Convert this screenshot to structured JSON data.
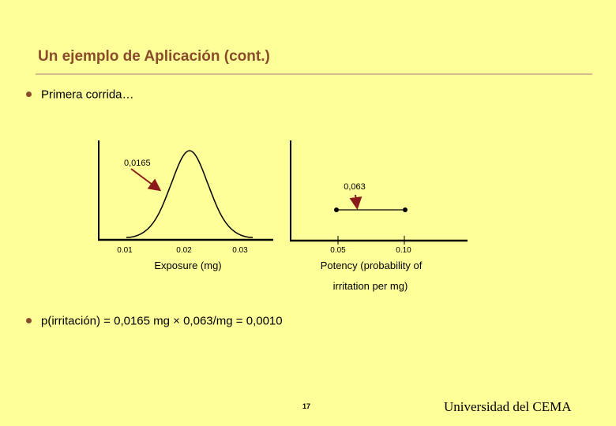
{
  "slide": {
    "title": "Un ejemplo de Aplicación (cont.)",
    "bullet1": "Primera corrida…",
    "bullet2": "p(irritación) = 0,0165 mg × 0,063/mg = 0,0010",
    "page_number": "17",
    "institution": "Universidad del CEMA",
    "colors": {
      "background": "#ffff99",
      "title": "#8a4b2a",
      "arrow": "#8b1a1a"
    }
  },
  "figure": {
    "left_plot": {
      "annotation": "0,0165",
      "tick_labels": [
        "0.01",
        "0.02",
        "0.03"
      ],
      "axis_label": "Exposure (mg)"
    },
    "right_plot": {
      "annotation": "0,063",
      "tick_labels": [
        "0.05",
        "0.10"
      ],
      "axis_label_line1": "Potency (probability of",
      "axis_label_line2": "irritation per mg)"
    }
  }
}
